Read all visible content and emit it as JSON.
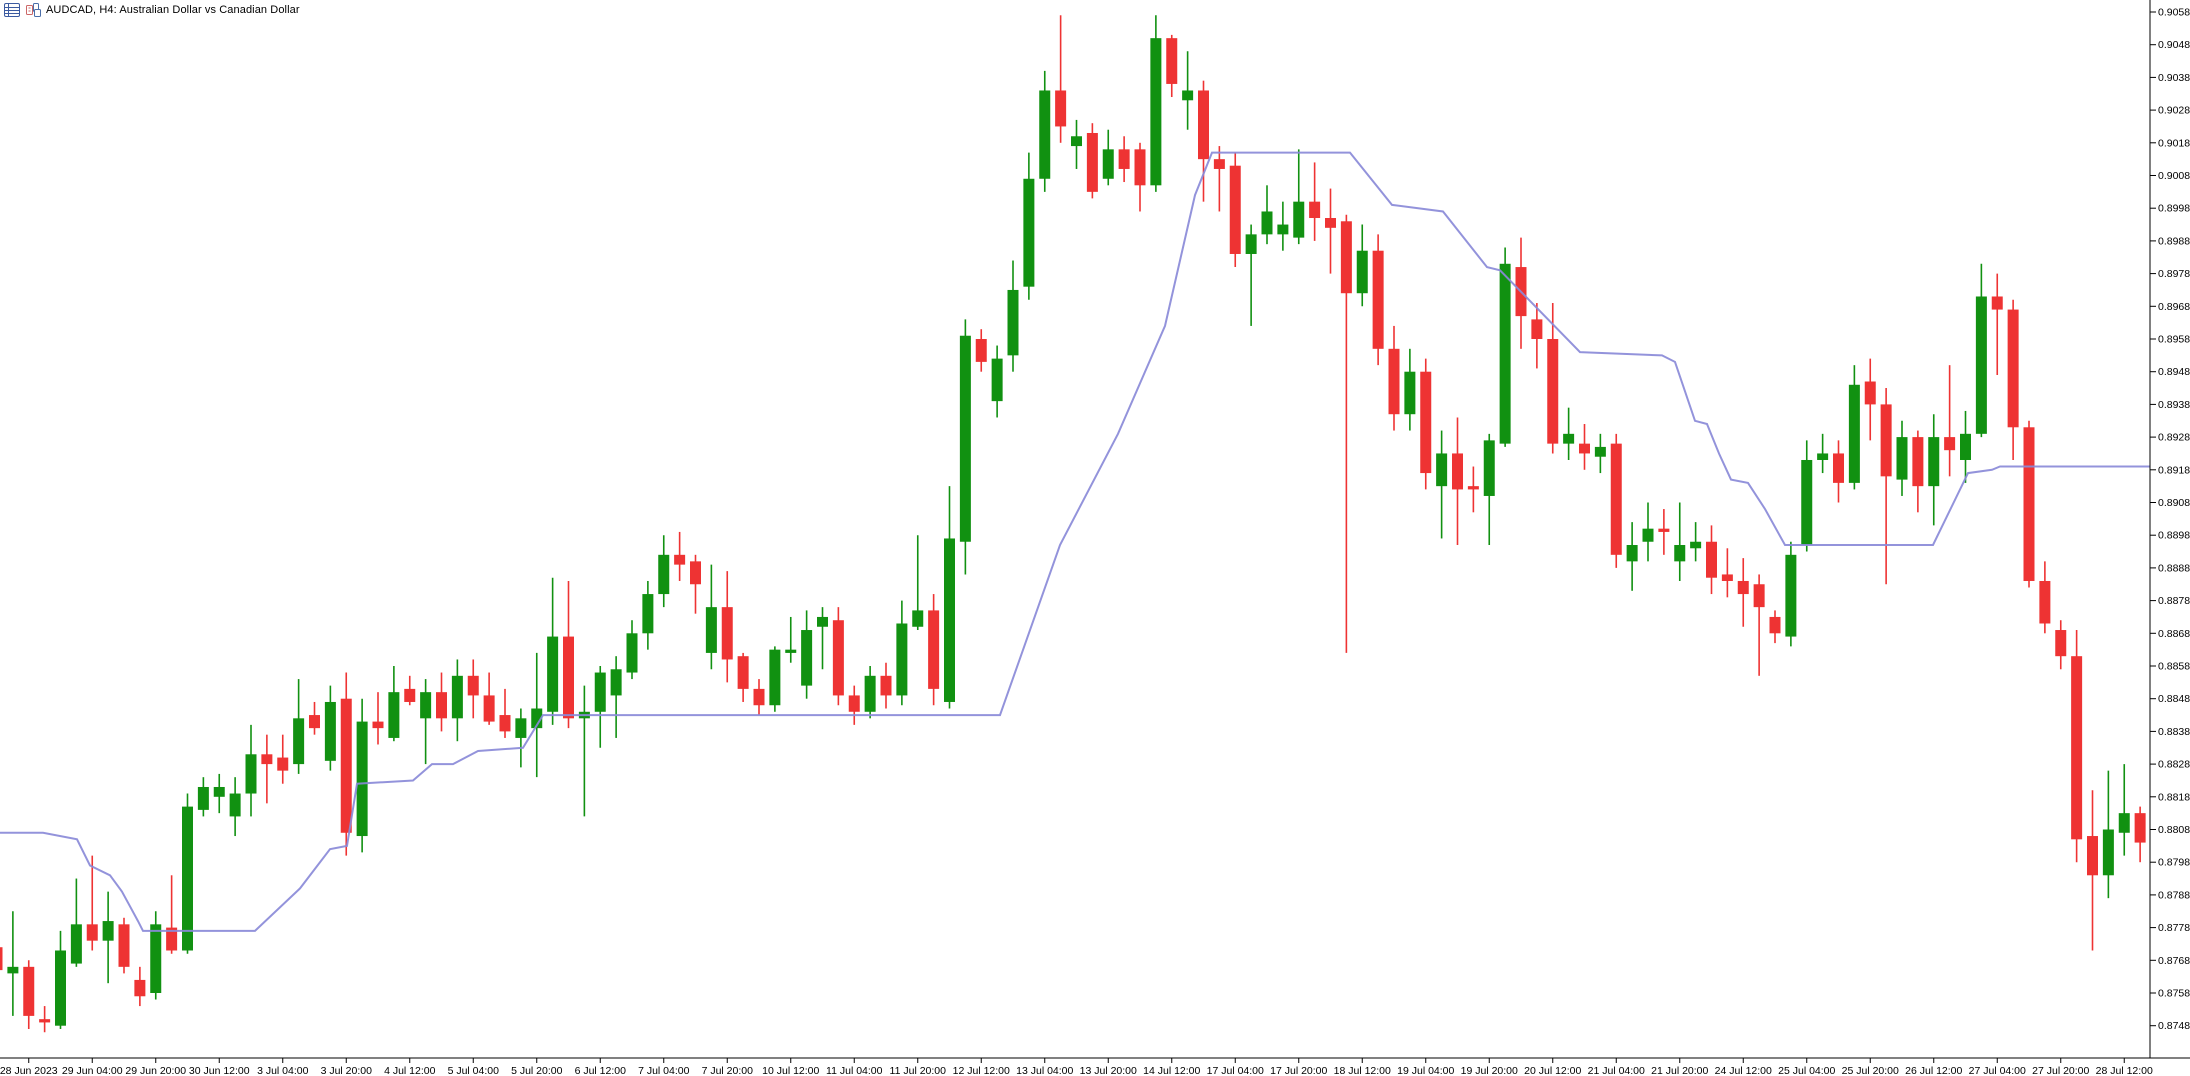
{
  "header": {
    "title": "AUDCAD, H4:  Australian Dollar vs Canadian Dollar",
    "icons": [
      "chart-list-icon",
      "candles-icon"
    ]
  },
  "chart_data": {
    "type": "candlestick",
    "title": "AUDCAD, H4: Australian Dollar vs Canadian Dollar",
    "symbol": "AUDCAD",
    "timeframe": "H4",
    "grid": false,
    "legend_position": "none",
    "ylim": [
      0.8738,
      0.9061
    ],
    "price_step": 0.001,
    "colors": {
      "up": "#119111",
      "down": "#ee3333",
      "indicator": "#8a8ad8",
      "background": "#ffffff",
      "axis_line": "#000000",
      "axis_text": "#000000"
    },
    "y_axis_labels": [
      "0.90580",
      "0.90480",
      "0.90380",
      "0.90280",
      "0.90180",
      "0.90080",
      "0.89980",
      "0.89880",
      "0.89780",
      "0.89680",
      "0.89580",
      "0.89480",
      "0.89380",
      "0.89280",
      "0.89180",
      "0.89080",
      "0.88980",
      "0.88880",
      "0.88780",
      "0.88680",
      "0.88580",
      "0.88480",
      "0.88380",
      "0.88280",
      "0.88180",
      "0.88080",
      "0.87980",
      "0.87880",
      "0.87780",
      "0.87680",
      "0.87580",
      "0.87480"
    ],
    "x_axis_labels": [
      "28 Jun 2023",
      "29 Jun 04:00",
      "29 Jun 20:00",
      "30 Jun 12:00",
      "3 Jul 04:00",
      "3 Jul 20:00",
      "4 Jul 12:00",
      "5 Jul 04:00",
      "5 Jul 20:00",
      "6 Jul 12:00",
      "7 Jul 04:00",
      "7 Jul 20:00",
      "10 Jul 12:00",
      "11 Jul 04:00",
      "11 Jul 20:00",
      "12 Jul 12:00",
      "13 Jul 04:00",
      "13 Jul 20:00",
      "14 Jul 12:00",
      "17 Jul 04:00",
      "17 Jul 20:00",
      "18 Jul 12:00",
      "19 Jul 04:00",
      "19 Jul 20:00",
      "20 Jul 12:00",
      "21 Jul 04:00",
      "21 Jul 20:00",
      "24 Jul 12:00",
      "25 Jul 04:00",
      "25 Jul 20:00",
      "26 Jul 12:00",
      "27 Jul 04:00",
      "27 Jul 20:00",
      "28 Jul 12:00"
    ],
    "indicator": {
      "name": "trailing-stop-step-line",
      "color": "#8a8ad8",
      "points": [
        [
          0,
          0.8807
        ],
        [
          43,
          0.8807
        ],
        [
          77,
          0.8805
        ],
        [
          90,
          0.8797
        ],
        [
          110,
          0.8794
        ],
        [
          122,
          0.8789
        ],
        [
          138,
          0.878
        ],
        [
          143,
          0.8777
        ],
        [
          255,
          0.8777
        ],
        [
          300,
          0.879
        ],
        [
          330,
          0.8802
        ],
        [
          347,
          0.8803
        ],
        [
          357,
          0.8822
        ],
        [
          413,
          0.8823
        ],
        [
          432,
          0.8828
        ],
        [
          453,
          0.8828
        ],
        [
          478,
          0.8832
        ],
        [
          523,
          0.8833
        ],
        [
          543,
          0.8843
        ],
        [
          1000,
          0.8843
        ],
        [
          1060,
          0.8895
        ],
        [
          1118,
          0.8929
        ],
        [
          1165,
          0.8962
        ],
        [
          1195,
          0.9002
        ],
        [
          1212,
          0.9015
        ],
        [
          1350,
          0.9015
        ],
        [
          1392,
          0.8999
        ],
        [
          1443,
          0.8997
        ],
        [
          1487,
          0.898
        ],
        [
          1500,
          0.8979
        ],
        [
          1580,
          0.8954
        ],
        [
          1662,
          0.8953
        ],
        [
          1675,
          0.8951
        ],
        [
          1695,
          0.8933
        ],
        [
          1707,
          0.8932
        ],
        [
          1719,
          0.8923
        ],
        [
          1731,
          0.8915
        ],
        [
          1748,
          0.8914
        ],
        [
          1765,
          0.8906
        ],
        [
          1785,
          0.8895
        ],
        [
          1933,
          0.8895
        ],
        [
          1968,
          0.8917
        ],
        [
          1992,
          0.8918
        ],
        [
          2000,
          0.8919
        ],
        [
          2150,
          0.8919
        ]
      ]
    },
    "candles": [
      [
        "28 Jun 04:00",
        0.8772,
        0.8777,
        0.8757,
        0.8765
      ],
      [
        "28 Jun 08:00",
        0.8764,
        0.8783,
        0.8751,
        0.8766
      ],
      [
        "28 Jun 12:00",
        0.8766,
        0.8768,
        0.8747,
        0.8751
      ],
      [
        "28 Jun 16:00",
        0.875,
        0.8754,
        0.8746,
        0.8749
      ],
      [
        "28 Jun 20:00",
        0.8748,
        0.8777,
        0.8747,
        0.8771
      ],
      [
        "29 Jun 00:00",
        0.8767,
        0.8793,
        0.8766,
        0.8779
      ],
      [
        "29 Jun 04:00",
        0.8779,
        0.88,
        0.8771,
        0.8774
      ],
      [
        "29 Jun 08:00",
        0.8774,
        0.8789,
        0.8761,
        0.878
      ],
      [
        "29 Jun 12:00",
        0.8779,
        0.8781,
        0.8764,
        0.8766
      ],
      [
        "29 Jun 16:00",
        0.8762,
        0.8766,
        0.8754,
        0.8757
      ],
      [
        "29 Jun 20:00",
        0.8758,
        0.8783,
        0.8756,
        0.8779
      ],
      [
        "30 Jun 00:00",
        0.8778,
        0.8794,
        0.877,
        0.8771
      ],
      [
        "30 Jun 04:00",
        0.8771,
        0.8819,
        0.877,
        0.8815
      ],
      [
        "30 Jun 08:00",
        0.8814,
        0.8824,
        0.8812,
        0.8821
      ],
      [
        "30 Jun 12:00",
        0.8818,
        0.8825,
        0.8813,
        0.8821
      ],
      [
        "30 Jun 16:00",
        0.8812,
        0.8824,
        0.8806,
        0.8819
      ],
      [
        "30 Jun 20:00",
        0.8819,
        0.884,
        0.8812,
        0.8831
      ],
      [
        "3 Jul 00:00",
        0.8831,
        0.8837,
        0.8816,
        0.8828
      ],
      [
        "3 Jul 04:00",
        0.883,
        0.8837,
        0.8822,
        0.8826
      ],
      [
        "3 Jul 08:00",
        0.8828,
        0.8854,
        0.8825,
        0.8842
      ],
      [
        "3 Jul 12:00",
        0.8843,
        0.8847,
        0.8837,
        0.8839
      ],
      [
        "3 Jul 16:00",
        0.8829,
        0.8852,
        0.8826,
        0.8847
      ],
      [
        "3 Jul 20:00",
        0.8848,
        0.8856,
        0.88,
        0.8807
      ],
      [
        "4 Jul 00:00",
        0.8806,
        0.8848,
        0.8801,
        0.8841
      ],
      [
        "4 Jul 04:00",
        0.8841,
        0.885,
        0.8834,
        0.8839
      ],
      [
        "4 Jul 08:00",
        0.8836,
        0.8858,
        0.8835,
        0.885
      ],
      [
        "4 Jul 12:00",
        0.8851,
        0.8855,
        0.8846,
        0.8847
      ],
      [
        "4 Jul 16:00",
        0.8842,
        0.8854,
        0.8828,
        0.885
      ],
      [
        "4 Jul 20:00",
        0.885,
        0.8856,
        0.8838,
        0.8842
      ],
      [
        "5 Jul 00:00",
        0.8842,
        0.886,
        0.8835,
        0.8855
      ],
      [
        "5 Jul 04:00",
        0.8855,
        0.886,
        0.8842,
        0.8849
      ],
      [
        "5 Jul 08:00",
        0.8849,
        0.8856,
        0.884,
        0.8841
      ],
      [
        "5 Jul 12:00",
        0.8843,
        0.8851,
        0.8836,
        0.8838
      ],
      [
        "5 Jul 16:00",
        0.8836,
        0.8845,
        0.8827,
        0.8842
      ],
      [
        "5 Jul 20:00",
        0.8839,
        0.8862,
        0.8824,
        0.8845
      ],
      [
        "6 Jul 00:00",
        0.8844,
        0.8885,
        0.884,
        0.8867
      ],
      [
        "6 Jul 04:00",
        0.8867,
        0.8884,
        0.8839,
        0.8842
      ],
      [
        "6 Jul 08:00",
        0.8842,
        0.8852,
        0.8812,
        0.8844
      ],
      [
        "6 Jul 12:00",
        0.8844,
        0.8858,
        0.8833,
        0.8856
      ],
      [
        "6 Jul 16:00",
        0.8849,
        0.8861,
        0.8836,
        0.8857
      ],
      [
        "6 Jul 20:00",
        0.8856,
        0.8872,
        0.8854,
        0.8868
      ],
      [
        "7 Jul 00:00",
        0.8868,
        0.8884,
        0.8863,
        0.888
      ],
      [
        "7 Jul 04:00",
        0.888,
        0.8898,
        0.8876,
        0.8892
      ],
      [
        "7 Jul 08:00",
        0.8892,
        0.8899,
        0.8884,
        0.8889
      ],
      [
        "7 Jul 12:00",
        0.889,
        0.8892,
        0.8874,
        0.8883
      ],
      [
        "7 Jul 16:00",
        0.8862,
        0.8889,
        0.8857,
        0.8876
      ],
      [
        "7 Jul 20:00",
        0.8876,
        0.8887,
        0.8853,
        0.886
      ],
      [
        "10 Jul 00:00",
        0.8861,
        0.8862,
        0.8847,
        0.8851
      ],
      [
        "10 Jul 04:00",
        0.8851,
        0.8854,
        0.8843,
        0.8846
      ],
      [
        "10 Jul 08:00",
        0.8846,
        0.8864,
        0.8844,
        0.8863
      ],
      [
        "10 Jul 12:00",
        0.8862,
        0.8873,
        0.8859,
        0.8863
      ],
      [
        "10 Jul 16:00",
        0.8852,
        0.8875,
        0.8848,
        0.8869
      ],
      [
        "10 Jul 20:00",
        0.887,
        0.8876,
        0.8857,
        0.8873
      ],
      [
        "11 Jul 00:00",
        0.8872,
        0.8876,
        0.8846,
        0.8849
      ],
      [
        "11 Jul 04:00",
        0.8849,
        0.8852,
        0.884,
        0.8844
      ],
      [
        "11 Jul 08:00",
        0.8844,
        0.8858,
        0.8842,
        0.8855
      ],
      [
        "11 Jul 12:00",
        0.8855,
        0.8859,
        0.8845,
        0.8849
      ],
      [
        "11 Jul 16:00",
        0.8849,
        0.8878,
        0.8846,
        0.8871
      ],
      [
        "11 Jul 20:00",
        0.887,
        0.8898,
        0.8869,
        0.8875
      ],
      [
        "12 Jul 00:00",
        0.8875,
        0.888,
        0.8846,
        0.8851
      ],
      [
        "12 Jul 04:00",
        0.8847,
        0.8913,
        0.8845,
        0.8897
      ],
      [
        "12 Jul 08:00",
        0.8896,
        0.8964,
        0.8886,
        0.8959
      ],
      [
        "12 Jul 12:00",
        0.8958,
        0.8961,
        0.8948,
        0.8951
      ],
      [
        "12 Jul 16:00",
        0.8939,
        0.8956,
        0.8934,
        0.8952
      ],
      [
        "12 Jul 20:00",
        0.8953,
        0.8982,
        0.8948,
        0.8973
      ],
      [
        "13 Jul 00:00",
        0.8974,
        0.9015,
        0.897,
        0.9007
      ],
      [
        "13 Jul 04:00",
        0.9007,
        0.904,
        0.9003,
        0.9034
      ],
      [
        "13 Jul 08:00",
        0.9034,
        0.9057,
        0.9018,
        0.9023
      ],
      [
        "13 Jul 12:00",
        0.9017,
        0.9025,
        0.901,
        0.902
      ],
      [
        "13 Jul 16:00",
        0.9021,
        0.9024,
        0.9001,
        0.9003
      ],
      [
        "13 Jul 20:00",
        0.9007,
        0.9022,
        0.9005,
        0.9016
      ],
      [
        "14 Jul 00:00",
        0.9016,
        0.902,
        0.9006,
        0.901
      ],
      [
        "14 Jul 04:00",
        0.9016,
        0.9018,
        0.8997,
        0.9005
      ],
      [
        "14 Jul 08:00",
        0.9005,
        0.9057,
        0.9003,
        0.905
      ],
      [
        "14 Jul 12:00",
        0.905,
        0.9051,
        0.9032,
        0.9036
      ],
      [
        "14 Jul 16:00",
        0.9031,
        0.9046,
        0.9022,
        0.9034
      ],
      [
        "14 Jul 20:00",
        0.9034,
        0.9037,
        0.9,
        0.9013
      ],
      [
        "17 Jul 00:00",
        0.9013,
        0.9017,
        0.8997,
        0.901
      ],
      [
        "17 Jul 04:00",
        0.9011,
        0.9015,
        0.898,
        0.8984
      ],
      [
        "17 Jul 08:00",
        0.8984,
        0.8993,
        0.8962,
        0.899
      ],
      [
        "17 Jul 12:00",
        0.899,
        0.9005,
        0.8987,
        0.8997
      ],
      [
        "17 Jul 16:00",
        0.899,
        0.9,
        0.8985,
        0.8993
      ],
      [
        "17 Jul 20:00",
        0.8989,
        0.9016,
        0.8987,
        0.9
      ],
      [
        "18 Jul 00:00",
        0.9,
        0.9012,
        0.8988,
        0.8995
      ],
      [
        "18 Jul 04:00",
        0.8995,
        0.9004,
        0.8978,
        0.8992
      ],
      [
        "18 Jul 08:00",
        0.8994,
        0.8996,
        0.8862,
        0.8972
      ],
      [
        "18 Jul 12:00",
        0.8972,
        0.8993,
        0.8968,
        0.8985
      ],
      [
        "18 Jul 16:00",
        0.8985,
        0.899,
        0.895,
        0.8955
      ],
      [
        "18 Jul 20:00",
        0.8955,
        0.8962,
        0.893,
        0.8935
      ],
      [
        "19 Jul 00:00",
        0.8935,
        0.8955,
        0.893,
        0.8948
      ],
      [
        "19 Jul 04:00",
        0.8948,
        0.8952,
        0.8912,
        0.8917
      ],
      [
        "19 Jul 08:00",
        0.8913,
        0.893,
        0.8897,
        0.8923
      ],
      [
        "19 Jul 12:00",
        0.8923,
        0.8934,
        0.8895,
        0.8912
      ],
      [
        "19 Jul 16:00",
        0.8913,
        0.8919,
        0.8905,
        0.8912
      ],
      [
        "19 Jul 20:00",
        0.891,
        0.8929,
        0.8895,
        0.8927
      ],
      [
        "20 Jul 00:00",
        0.8926,
        0.8986,
        0.8925,
        0.8981
      ],
      [
        "20 Jul 04:00",
        0.898,
        0.8989,
        0.8955,
        0.8965
      ],
      [
        "20 Jul 08:00",
        0.8964,
        0.8969,
        0.8949,
        0.8958
      ],
      [
        "20 Jul 12:00",
        0.8958,
        0.8969,
        0.8923,
        0.8926
      ],
      [
        "20 Jul 16:00",
        0.8926,
        0.8937,
        0.8921,
        0.8929
      ],
      [
        "20 Jul 20:00",
        0.8926,
        0.8932,
        0.8918,
        0.8923
      ],
      [
        "21 Jul 00:00",
        0.8922,
        0.8929,
        0.8917,
        0.8925
      ],
      [
        "21 Jul 04:00",
        0.8926,
        0.8929,
        0.8888,
        0.8892
      ],
      [
        "21 Jul 08:00",
        0.889,
        0.8902,
        0.8881,
        0.8895
      ],
      [
        "21 Jul 12:00",
        0.8896,
        0.8908,
        0.889,
        0.89
      ],
      [
        "21 Jul 16:00",
        0.89,
        0.8906,
        0.8892,
        0.8899
      ],
      [
        "21 Jul 20:00",
        0.889,
        0.8908,
        0.8884,
        0.8895
      ],
      [
        "24 Jul 00:00",
        0.8894,
        0.8902,
        0.889,
        0.8896
      ],
      [
        "24 Jul 04:00",
        0.8896,
        0.8901,
        0.888,
        0.8885
      ],
      [
        "24 Jul 08:00",
        0.8886,
        0.8894,
        0.8879,
        0.8884
      ],
      [
        "24 Jul 12:00",
        0.8884,
        0.8891,
        0.887,
        0.888
      ],
      [
        "24 Jul 16:00",
        0.8883,
        0.8886,
        0.8855,
        0.8876
      ],
      [
        "24 Jul 20:00",
        0.8873,
        0.8875,
        0.8865,
        0.8868
      ],
      [
        "25 Jul 00:00",
        0.8867,
        0.8896,
        0.8864,
        0.8892
      ],
      [
        "25 Jul 04:00",
        0.8895,
        0.8927,
        0.8893,
        0.8921
      ],
      [
        "25 Jul 08:00",
        0.8921,
        0.8929,
        0.8917,
        0.8923
      ],
      [
        "25 Jul 12:00",
        0.8923,
        0.8927,
        0.8908,
        0.8914
      ],
      [
        "25 Jul 16:00",
        0.8914,
        0.895,
        0.8912,
        0.8944
      ],
      [
        "25 Jul 20:00",
        0.8945,
        0.8952,
        0.8927,
        0.8938
      ],
      [
        "26 Jul 00:00",
        0.8938,
        0.8943,
        0.8883,
        0.8916
      ],
      [
        "26 Jul 04:00",
        0.8915,
        0.8933,
        0.891,
        0.8928
      ],
      [
        "26 Jul 08:00",
        0.8928,
        0.893,
        0.8905,
        0.8913
      ],
      [
        "26 Jul 12:00",
        0.8913,
        0.8935,
        0.8901,
        0.8928
      ],
      [
        "26 Jul 16:00",
        0.8928,
        0.895,
        0.8916,
        0.8924
      ],
      [
        "26 Jul 20:00",
        0.8921,
        0.8936,
        0.8914,
        0.8929
      ],
      [
        "27 Jul 00:00",
        0.8929,
        0.8981,
        0.8928,
        0.8971
      ],
      [
        "27 Jul 04:00",
        0.8971,
        0.8978,
        0.8947,
        0.8967
      ],
      [
        "27 Jul 08:00",
        0.8967,
        0.897,
        0.8921,
        0.8931
      ],
      [
        "27 Jul 12:00",
        0.8931,
        0.8933,
        0.8882,
        0.8884
      ],
      [
        "27 Jul 16:00",
        0.8884,
        0.889,
        0.8868,
        0.8871
      ],
      [
        "27 Jul 20:00",
        0.8869,
        0.8872,
        0.8857,
        0.8861
      ],
      [
        "28 Jul 00:00",
        0.8861,
        0.8869,
        0.8798,
        0.8805
      ],
      [
        "28 Jul 04:00",
        0.8806,
        0.882,
        0.8771,
        0.8794
      ],
      [
        "28 Jul 08:00",
        0.8794,
        0.8826,
        0.8787,
        0.8808
      ],
      [
        "28 Jul 12:00",
        0.8807,
        0.8828,
        0.88,
        0.8813
      ],
      [
        "28 Jul 16:00",
        0.8813,
        0.8815,
        0.8798,
        0.8804
      ]
    ]
  }
}
